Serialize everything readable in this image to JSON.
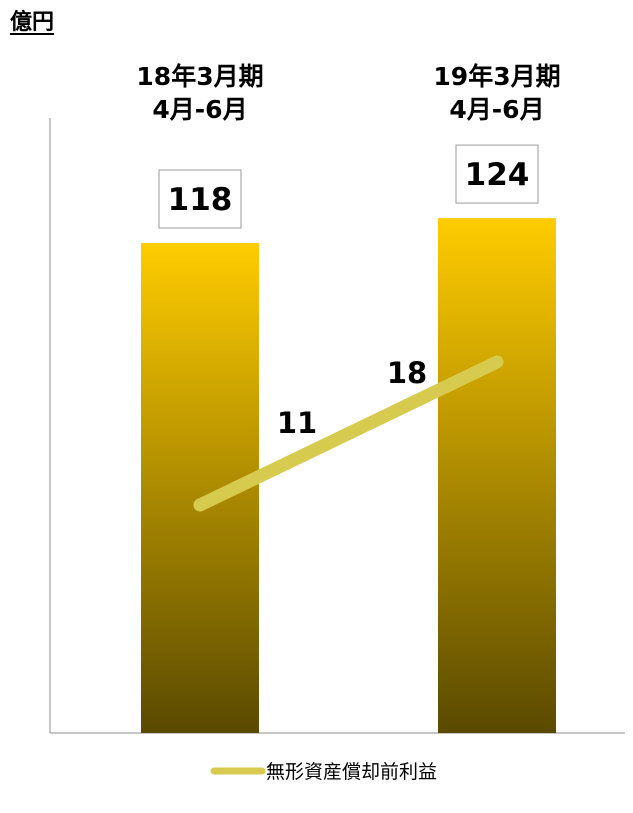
{
  "unit_label": "億円",
  "chart_data": {
    "type": "bar",
    "categories": [
      [
        "18年3月期",
        "4月-6月"
      ],
      [
        "19年3月期",
        "4月-6月"
      ]
    ],
    "bar_series": {
      "values": [
        118,
        124
      ],
      "data_labels": [
        "118",
        "124"
      ],
      "gradient_colors": [
        "#ffcc00",
        "#5a4a00"
      ]
    },
    "line_series": {
      "name": "無形資産償却前利益",
      "values": [
        11,
        18
      ],
      "data_labels": [
        "11",
        "18"
      ],
      "color": "#d6cb4e"
    },
    "legend_position": "bottom",
    "grid": false
  }
}
